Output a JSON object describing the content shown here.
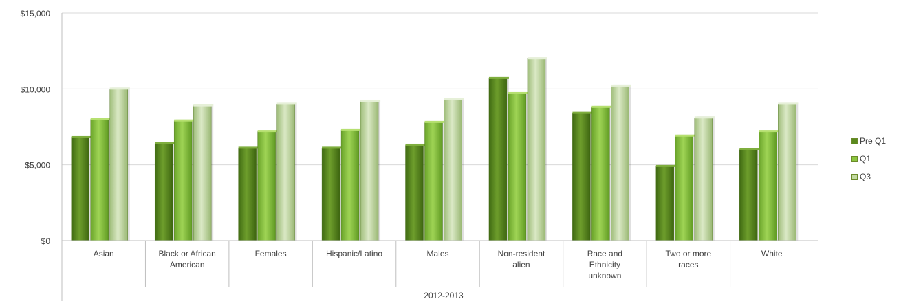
{
  "chart_data": {
    "type": "bar",
    "group_label": "2012-2013",
    "categories": [
      {
        "lines": [
          "Asian"
        ]
      },
      {
        "lines": [
          "Black or African",
          "American"
        ]
      },
      {
        "lines": [
          "Females"
        ]
      },
      {
        "lines": [
          "Hispanic/Latino"
        ]
      },
      {
        "lines": [
          "Males"
        ]
      },
      {
        "lines": [
          "Non-resident",
          "alien"
        ]
      },
      {
        "lines": [
          "Race and",
          "Ethnicity",
          "unknown"
        ]
      },
      {
        "lines": [
          "Two or more",
          "races"
        ]
      },
      {
        "lines": [
          "White"
        ]
      }
    ],
    "series": [
      {
        "name": "Pre Q1",
        "color": "#5a8a1e",
        "values": [
          6800,
          6400,
          6100,
          6100,
          6300,
          10700,
          8400,
          4900,
          6000
        ]
      },
      {
        "name": "Q1",
        "color": "#8cc63f",
        "values": [
          8000,
          7900,
          7200,
          7300,
          7800,
          9700,
          8800,
          6900,
          7200
        ]
      },
      {
        "name": "Q3",
        "color": "#c2d9a0",
        "values": [
          10000,
          8900,
          9000,
          9200,
          9300,
          12000,
          10200,
          8100,
          9000
        ]
      }
    ],
    "yticks": [
      "$0",
      "$5,000",
      "$10,000",
      "$15,000"
    ],
    "ylim": [
      0,
      15000
    ],
    "grid": true,
    "legend_position": "right"
  }
}
